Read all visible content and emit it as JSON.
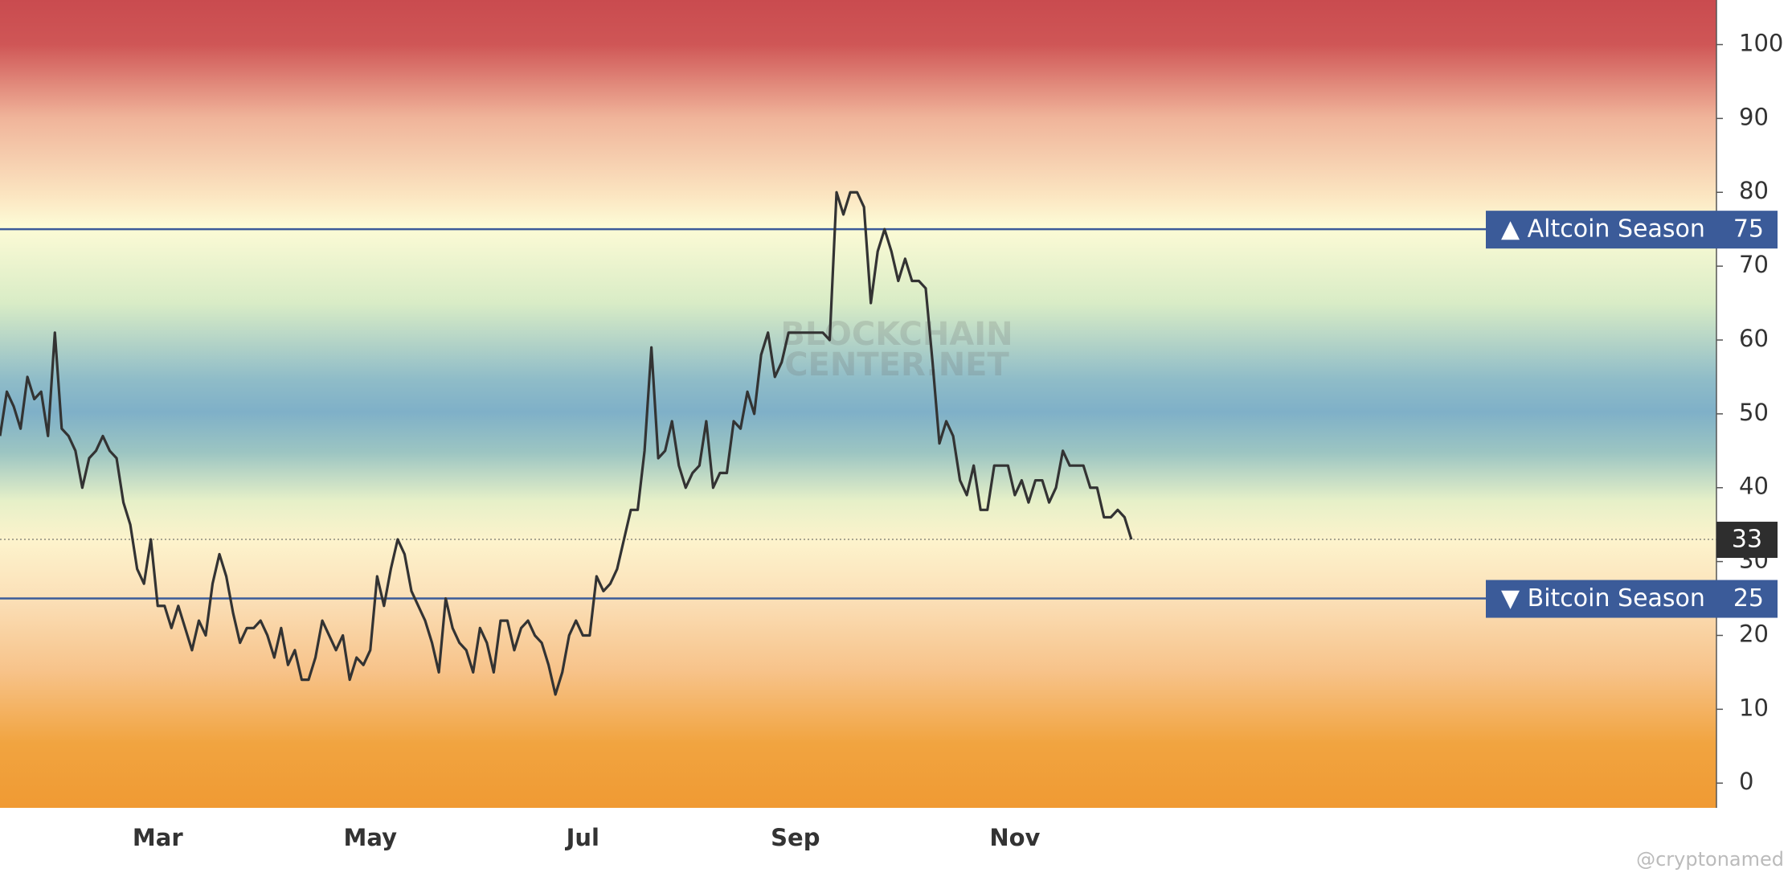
{
  "chart_data": {
    "type": "line",
    "categories": [
      null,
      null,
      null,
      null,
      null,
      null,
      null,
      null,
      null,
      null,
      null,
      null,
      null,
      null,
      null,
      null,
      null,
      null,
      null,
      null,
      null,
      null,
      null,
      "Mar",
      null,
      null,
      null,
      null,
      null,
      null,
      null,
      null,
      null,
      null,
      null,
      null,
      null,
      null,
      null,
      null,
      null,
      null,
      null,
      null,
      null,
      null,
      null,
      null,
      null,
      null,
      null,
      null,
      null,
      null,
      "May",
      null,
      null,
      null,
      null,
      null,
      null,
      null,
      null,
      null,
      null,
      null,
      null,
      null,
      null,
      null,
      null,
      null,
      null,
      null,
      null,
      null,
      null,
      null,
      null,
      null,
      null,
      null,
      null,
      null,
      null,
      "Jul",
      null,
      null,
      null,
      null,
      null,
      null,
      null,
      null,
      null,
      null,
      null,
      null,
      null,
      null,
      null,
      null,
      null,
      null,
      null,
      null,
      null,
      null,
      null,
      null,
      null,
      null,
      null,
      null,
      null,
      null,
      "Sep",
      null,
      null,
      null,
      null,
      null,
      null,
      null,
      null,
      null,
      null,
      null,
      null,
      null,
      null,
      null,
      null,
      null,
      null,
      null,
      null,
      null,
      null,
      null,
      null,
      null,
      null,
      null,
      null,
      null,
      null,
      null,
      "Nov",
      null,
      null,
      null,
      null,
      null,
      null,
      null,
      null,
      null,
      null,
      null,
      null,
      null,
      null,
      null,
      null,
      null
    ],
    "values": [
      47,
      53,
      51,
      48,
      55,
      52,
      53,
      47,
      61,
      48,
      47,
      45,
      40,
      44,
      45,
      47,
      45,
      44,
      38,
      35,
      29,
      27,
      33,
      24,
      24,
      21,
      24,
      21,
      18,
      22,
      20,
      27,
      31,
      28,
      23,
      19,
      21,
      21,
      22,
      20,
      17,
      21,
      16,
      18,
      14,
      14,
      17,
      22,
      20,
      18,
      20,
      14,
      17,
      16,
      18,
      28,
      24,
      29,
      33,
      31,
      26,
      24,
      22,
      19,
      15,
      25,
      21,
      19,
      18,
      15,
      21,
      19,
      15,
      22,
      22,
      18,
      21,
      22,
      20,
      19,
      16,
      12,
      15,
      20,
      22,
      20,
      20,
      28,
      26,
      27,
      29,
      33,
      37,
      37,
      45,
      59,
      44,
      45,
      49,
      43,
      40,
      42,
      43,
      49,
      40,
      42,
      42,
      49,
      48,
      53,
      50,
      58,
      61,
      55,
      57,
      61,
      61,
      61,
      61,
      61,
      61,
      60,
      80,
      77,
      80,
      80,
      78,
      65,
      72,
      75,
      72,
      68,
      71,
      68,
      68,
      67,
      57,
      46,
      49,
      47,
      41,
      39,
      43,
      37,
      37,
      43,
      43,
      43,
      39,
      41,
      38,
      41,
      41,
      38,
      40,
      45,
      43,
      43,
      43,
      40,
      40,
      36,
      36,
      37,
      36,
      33
    ],
    "color": "#333333",
    "ylim": [
      -3.35,
      106.04
    ],
    "yticks": [
      0,
      10,
      20,
      30,
      40,
      50,
      60,
      70,
      80,
      90,
      100
    ],
    "annotations": [
      {
        "label": "▲ Altcoin Season",
        "value": 75,
        "color": "#3b5b99"
      },
      {
        "label": "▼ Bitcoin Season",
        "value": 25,
        "color": "#3b5b99"
      }
    ],
    "watermark": [
      "BLOCKCHAIN",
      "CENTER.NET"
    ],
    "credit": "@cryptonamed"
  }
}
